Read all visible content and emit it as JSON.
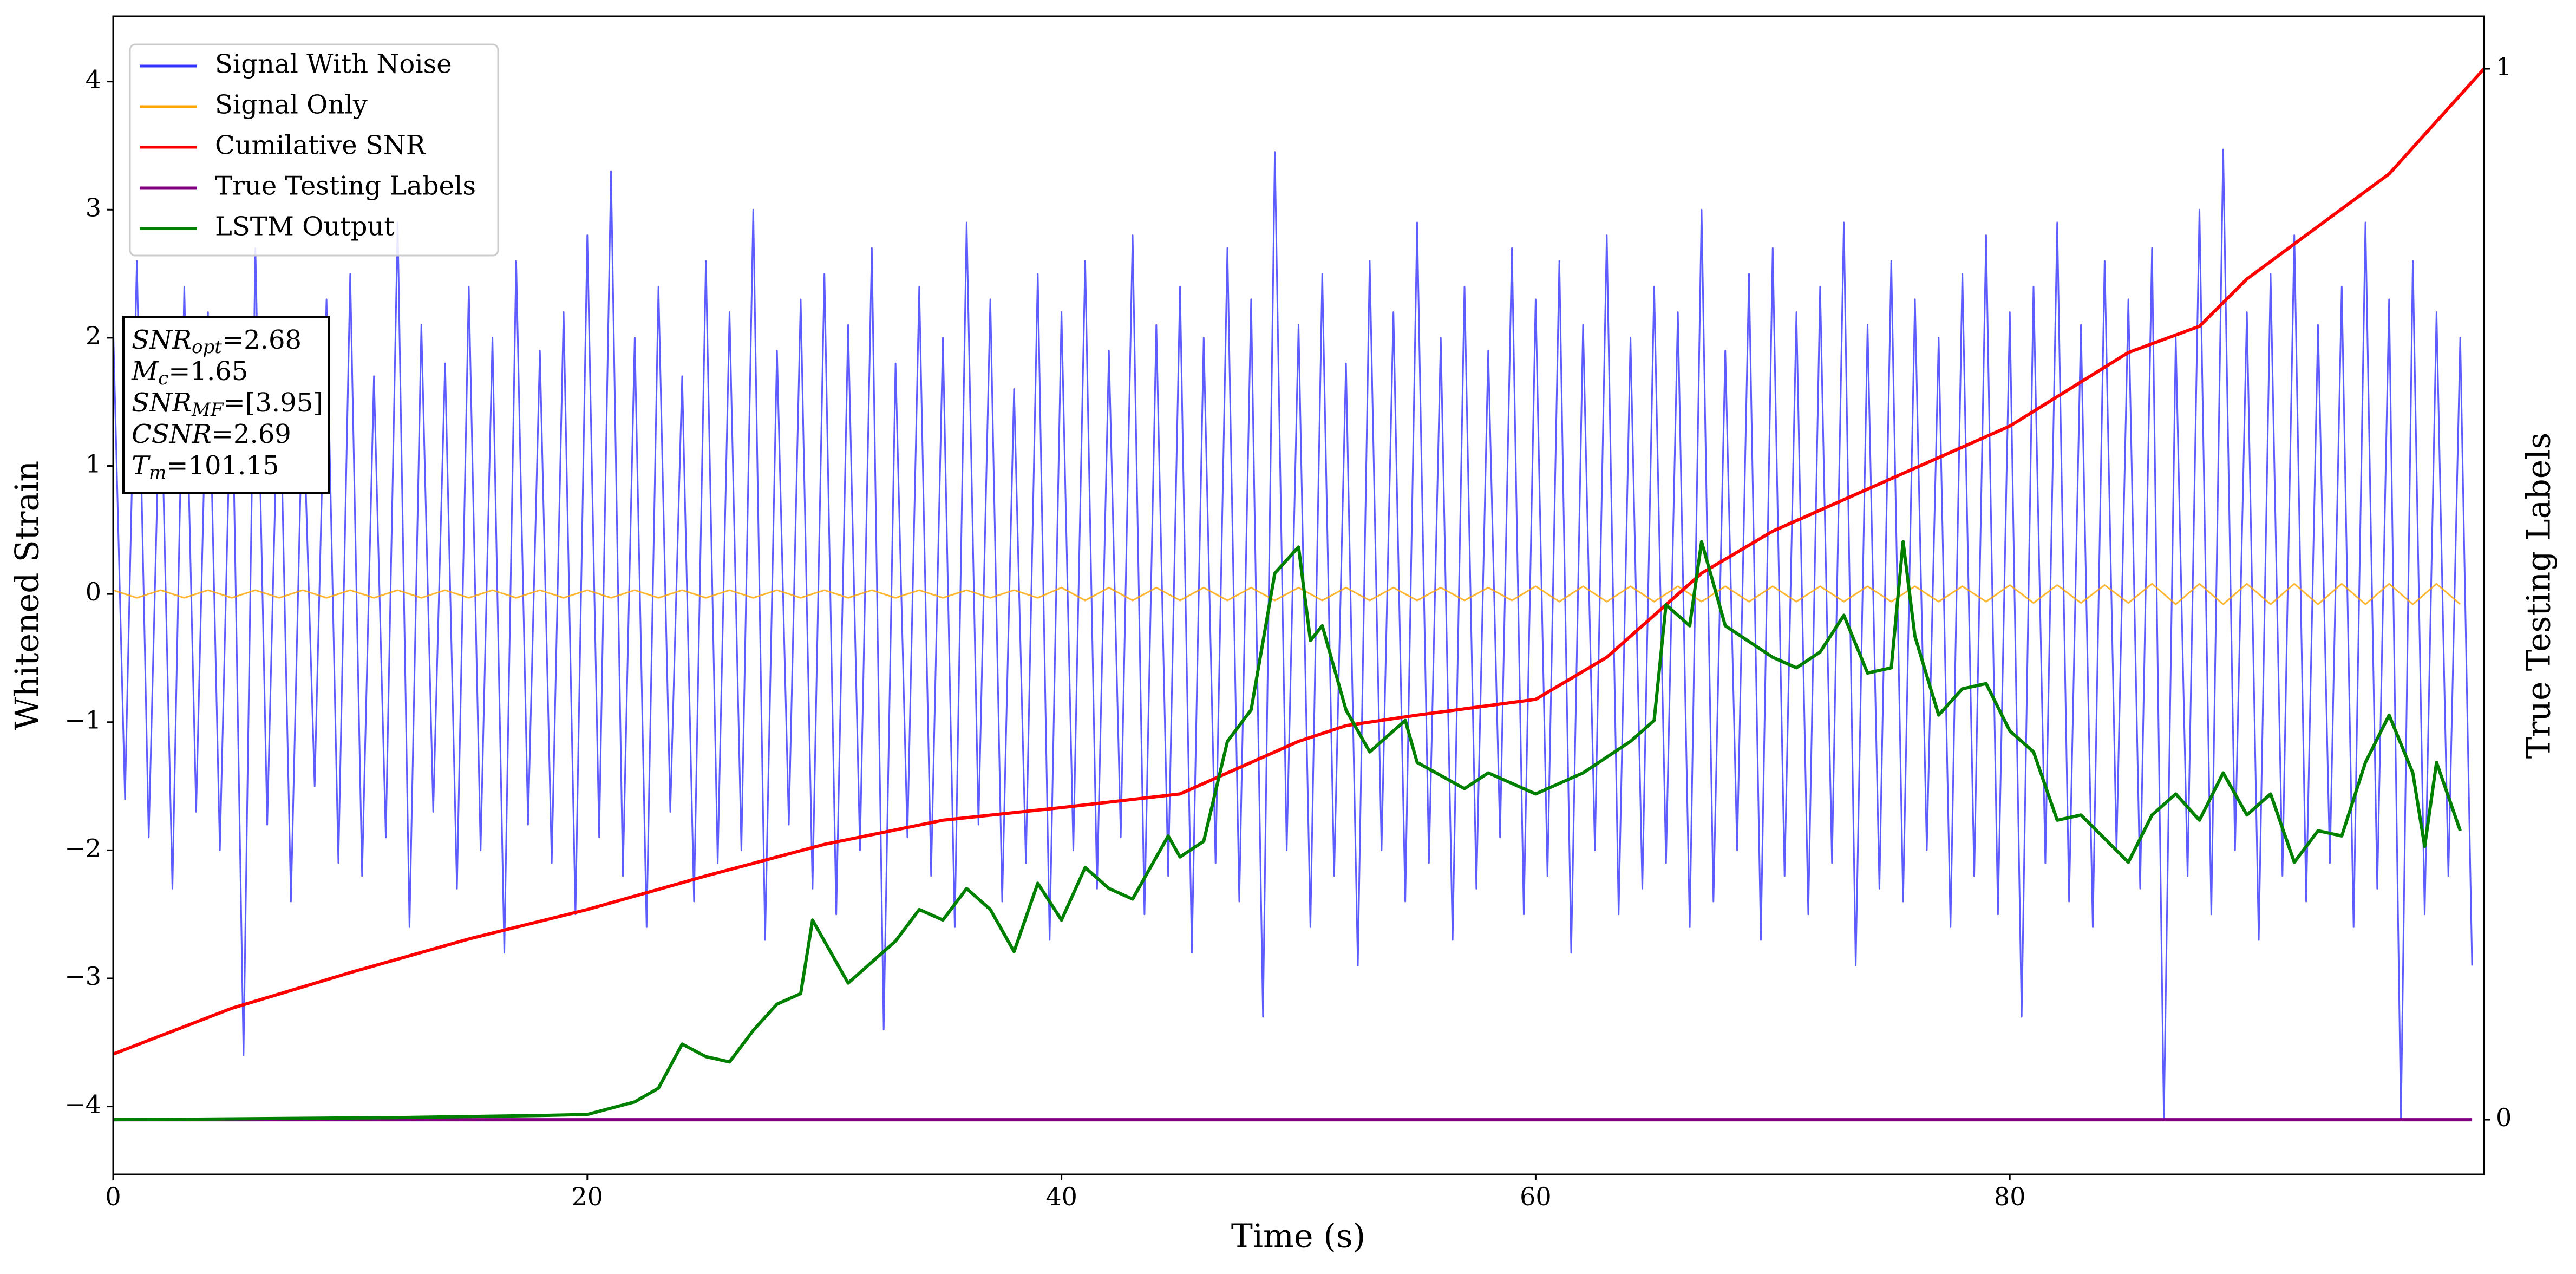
{
  "chart_data": {
    "type": "line",
    "xlabel": "Time (s)",
    "ylabel": "Whitened Strain",
    "y2label": "True Testing Labels",
    "xlim": [
      0,
      100
    ],
    "ylim": [
      -4.53,
      4.51
    ],
    "y2lim": [
      -0.052,
      1.05
    ],
    "xticks": [
      0,
      20,
      40,
      60,
      80
    ],
    "yticks": [
      {
        "value": -4,
        "label": "−4"
      },
      {
        "value": -3,
        "label": "−3"
      },
      {
        "value": -2,
        "label": "−2"
      },
      {
        "value": -1,
        "label": "−1"
      },
      0,
      1,
      2,
      3,
      4
    ],
    "y2ticks": [
      0,
      1
    ],
    "legend": "upper left",
    "annotations": [
      {
        "italic": "SNR",
        "sub": "opt",
        "text": "=2.68"
      },
      {
        "italic": "M",
        "sub": "c",
        "text": "=1.65"
      },
      {
        "italic": "SNR",
        "sub": "MF",
        "text": "=[3.95]"
      },
      {
        "italic": "CSNR",
        "text": "=2.69"
      },
      {
        "italic": "T",
        "sub": "m",
        "text": "=101.15"
      }
    ],
    "series": [
      {
        "name": "Signal With Noise",
        "color": "#3333ff",
        "axis": "y",
        "x": [
          0,
          0.5,
          1,
          1.5,
          2,
          2.5,
          3,
          3.5,
          4,
          4.5,
          5,
          5.5,
          6,
          6.5,
          7,
          7.5,
          8,
          8.5,
          9,
          9.5,
          10,
          10.5,
          11,
          11.5,
          12,
          12.5,
          13,
          13.5,
          14,
          14.5,
          15,
          15.5,
          16,
          16.5,
          17,
          17.5,
          18,
          18.5,
          19,
          19.5,
          20,
          20.5,
          21,
          21.5,
          22,
          22.5,
          23,
          23.5,
          24,
          24.5,
          25,
          25.5,
          26,
          26.5,
          27,
          27.5,
          28,
          28.5,
          29,
          29.5,
          30,
          30.5,
          31,
          31.5,
          32,
          32.5,
          33,
          33.5,
          34,
          34.5,
          35,
          35.5,
          36,
          36.5,
          37,
          37.5,
          38,
          38.5,
          39,
          39.5,
          40,
          40.5,
          41,
          41.5,
          42,
          42.5,
          43,
          43.5,
          44,
          44.5,
          45,
          45.5,
          46,
          46.5,
          47,
          47.5,
          48,
          48.5,
          49,
          49.5,
          50,
          50.5,
          51,
          51.5,
          52,
          52.5,
          53,
          53.5,
          54,
          54.5,
          55,
          55.5,
          56,
          56.5,
          57,
          57.5,
          58,
          58.5,
          59,
          59.5,
          60,
          60.5,
          61,
          61.5,
          62,
          62.5,
          63,
          63.5,
          64,
          64.5,
          65,
          65.5,
          66,
          66.5,
          67,
          67.5,
          68,
          68.5,
          69,
          69.5,
          70,
          70.5,
          71,
          71.5,
          72,
          72.5,
          73,
          73.5,
          74,
          74.5,
          75,
          75.5,
          76,
          76.5,
          77,
          77.5,
          78,
          78.5,
          79,
          79.5,
          80,
          80.5,
          81,
          81.5,
          82,
          82.5,
          83,
          83.5,
          84,
          84.5,
          85,
          85.5,
          86,
          86.5,
          87,
          87.5,
          88,
          88.5,
          89,
          89.5,
          90,
          90.5,
          91,
          91.5,
          92,
          92.5,
          93,
          93.5,
          94,
          94.5,
          95,
          95.5,
          96,
          96.5,
          97,
          97.5,
          98,
          98.5,
          99,
          99.5
        ],
        "values": [
          2.1,
          -1.6,
          2.6,
          -1.9,
          1.8,
          -2.3,
          2.4,
          -1.7,
          2.2,
          -2.0,
          1.9,
          -3.6,
          2.7,
          -1.8,
          2.0,
          -2.4,
          1.6,
          -1.5,
          2.3,
          -2.1,
          2.5,
          -2.2,
          1.7,
          -1.9,
          2.9,
          -2.6,
          2.1,
          -1.7,
          1.8,
          -2.3,
          2.4,
          -2.0,
          2.0,
          -2.8,
          2.6,
          -1.8,
          1.9,
          -2.1,
          2.2,
          -2.5,
          2.8,
          -1.9,
          3.3,
          -2.2,
          2.0,
          -2.6,
          2.4,
          -1.7,
          1.7,
          -2.4,
          2.6,
          -2.1,
          2.2,
          -2.0,
          3.0,
          -2.7,
          1.9,
          -1.8,
          2.3,
          -2.3,
          2.5,
          -2.5,
          2.1,
          -2.0,
          2.7,
          -3.4,
          1.8,
          -1.9,
          2.4,
          -2.2,
          2.0,
          -2.6,
          2.9,
          -1.8,
          2.3,
          -2.4,
          1.6,
          -2.1,
          2.5,
          -2.7,
          2.2,
          -2.0,
          2.6,
          -2.3,
          1.9,
          -1.9,
          2.8,
          -2.5,
          2.1,
          -2.2,
          2.4,
          -2.8,
          2.0,
          -2.1,
          2.7,
          -2.4,
          2.3,
          -3.3,
          3.45,
          -2.0,
          2.1,
          -2.6,
          2.5,
          -2.2,
          1.8,
          -2.9,
          2.6,
          -2.0,
          2.2,
          -2.4,
          2.9,
          -2.1,
          2.0,
          -2.7,
          2.4,
          -2.3,
          1.9,
          -1.9,
          2.7,
          -2.5,
          2.3,
          -2.2,
          2.6,
          -2.8,
          2.1,
          -2.0,
          2.8,
          -2.5,
          2.0,
          -2.3,
          2.4,
          -2.1,
          2.2,
          -2.6,
          3.0,
          -2.4,
          1.9,
          -2.0,
          2.5,
          -2.7,
          2.7,
          -2.2,
          2.2,
          -2.5,
          2.4,
          -2.1,
          2.9,
          -2.9,
          2.1,
          -2.3,
          2.6,
          -2.4,
          2.3,
          -2.0,
          2.0,
          -2.6,
          2.5,
          -2.2,
          2.8,
          -2.5,
          2.2,
          -3.3,
          2.4,
          -2.1,
          2.9,
          -2.4,
          2.1,
          -2.6,
          2.6,
          -2.0,
          2.3,
          -2.3,
          2.7,
          -4.1,
          2.0,
          -2.2,
          3.0,
          -2.5,
          3.47,
          -2.0,
          2.2,
          -2.7,
          2.5,
          -2.2,
          2.8,
          -2.4,
          2.1,
          -2.1,
          2.4,
          -2.6,
          2.9,
          -2.3,
          2.3,
          -4.1,
          2.6,
          -2.5,
          2.2,
          -2.2,
          2.0,
          -2.9
        ]
      },
      {
        "name": "Signal Only",
        "color": "#ffa500",
        "axis": "y",
        "x": [
          0,
          1,
          2,
          3,
          4,
          5,
          6,
          7,
          8,
          9,
          10,
          11,
          12,
          13,
          14,
          15,
          16,
          17,
          18,
          19,
          20,
          21,
          22,
          23,
          24,
          25,
          26,
          27,
          28,
          29,
          30,
          31,
          32,
          33,
          34,
          35,
          36,
          37,
          38,
          39,
          40,
          41,
          42,
          43,
          44,
          45,
          46,
          47,
          48,
          49,
          50,
          51,
          52,
          53,
          54,
          55,
          56,
          57,
          58,
          59,
          60,
          61,
          62,
          63,
          64,
          65,
          66,
          67,
          68,
          69,
          70,
          71,
          72,
          73,
          74,
          75,
          76,
          77,
          78,
          79,
          80,
          81,
          82,
          83,
          84,
          85,
          86,
          87,
          88,
          89,
          90,
          91,
          92,
          93,
          94,
          95,
          96,
          97,
          98,
          99
        ],
        "values": [
          0.03,
          -0.03,
          0.03,
          -0.03,
          0.03,
          -0.03,
          0.03,
          -0.03,
          0.03,
          -0.03,
          0.03,
          -0.03,
          0.03,
          -0.03,
          0.03,
          -0.03,
          0.03,
          -0.03,
          0.03,
          -0.03,
          0.03,
          -0.03,
          0.03,
          -0.03,
          0.03,
          -0.03,
          0.03,
          -0.03,
          0.03,
          -0.03,
          0.03,
          -0.03,
          0.03,
          -0.03,
          0.03,
          -0.03,
          0.03,
          -0.03,
          0.03,
          -0.03,
          0.05,
          -0.05,
          0.05,
          -0.05,
          0.05,
          -0.05,
          0.05,
          -0.05,
          0.05,
          -0.05,
          0.05,
          -0.05,
          0.05,
          -0.05,
          0.05,
          -0.05,
          0.05,
          -0.05,
          0.05,
          -0.05,
          0.06,
          -0.06,
          0.06,
          -0.06,
          0.06,
          -0.06,
          0.06,
          -0.06,
          0.06,
          -0.06,
          0.06,
          -0.06,
          0.06,
          -0.06,
          0.06,
          -0.06,
          0.06,
          -0.06,
          0.06,
          -0.06,
          0.07,
          -0.07,
          0.07,
          -0.07,
          0.07,
          -0.07,
          0.08,
          -0.08,
          0.08,
          -0.08,
          0.08,
          -0.08,
          0.08,
          -0.08,
          0.08,
          -0.08,
          0.08,
          -0.08,
          0.08,
          -0.08
        ]
      },
      {
        "name": "Cumilative SNR",
        "color": "#ff0000",
        "axis": "y2",
        "x": [
          0,
          5,
          10,
          15,
          20,
          25,
          30,
          35,
          40,
          45,
          48,
          50,
          52,
          55,
          60,
          63,
          67,
          70,
          75,
          80,
          85,
          88,
          90,
          93,
          96,
          100
        ],
        "values": [
          0.0625,
          0.106,
          0.14,
          0.172,
          0.2,
          0.232,
          0.262,
          0.285,
          0.297,
          0.31,
          0.34,
          0.36,
          0.375,
          0.385,
          0.4,
          0.44,
          0.52,
          0.56,
          0.61,
          0.66,
          0.73,
          0.755,
          0.8,
          0.85,
          0.9,
          1.0
        ]
      },
      {
        "name": "True Testing Labels",
        "color": "#800080",
        "axis": "y2",
        "x": [
          0,
          99.5
        ],
        "values": [
          0,
          0
        ]
      },
      {
        "name": "LSTM Output",
        "color": "#008000",
        "axis": "y2",
        "x": [
          0,
          12,
          18,
          20,
          22,
          23,
          24,
          25,
          26,
          27,
          28,
          29,
          29.5,
          31,
          32,
          33,
          34,
          35,
          36,
          37,
          38,
          39,
          40,
          41,
          42,
          43,
          44.5,
          45,
          46,
          47,
          48,
          49,
          50,
          50.5,
          51,
          52,
          53,
          54.5,
          55,
          57,
          58,
          60,
          62,
          64,
          65,
          65.5,
          66.5,
          67,
          68,
          70,
          71,
          72,
          73,
          74,
          75,
          75.5,
          76,
          77,
          78,
          79,
          80,
          81,
          82,
          83,
          85,
          86,
          87,
          88,
          89,
          90,
          91,
          92,
          93,
          94,
          95,
          96,
          97,
          97.5,
          98,
          99
        ],
        "values": [
          0,
          0.002,
          0.004,
          0.005,
          0.017,
          0.03,
          0.072,
          0.06,
          0.055,
          0.085,
          0.11,
          0.12,
          0.19,
          0.13,
          0.15,
          0.17,
          0.2,
          0.19,
          0.22,
          0.2,
          0.16,
          0.225,
          0.19,
          0.24,
          0.22,
          0.21,
          0.27,
          0.25,
          0.265,
          0.36,
          0.39,
          0.52,
          0.545,
          0.456,
          0.47,
          0.39,
          0.35,
          0.38,
          0.34,
          0.315,
          0.33,
          0.31,
          0.33,
          0.36,
          0.38,
          0.49,
          0.47,
          0.55,
          0.47,
          0.44,
          0.43,
          0.445,
          0.48,
          0.425,
          0.43,
          0.55,
          0.46,
          0.385,
          0.41,
          0.415,
          0.37,
          0.35,
          0.285,
          0.29,
          0.245,
          0.29,
          0.31,
          0.285,
          0.33,
          0.29,
          0.31,
          0.245,
          0.275,
          0.27,
          0.34,
          0.385,
          0.33,
          0.26,
          0.34,
          0.275
        ]
      }
    ]
  }
}
